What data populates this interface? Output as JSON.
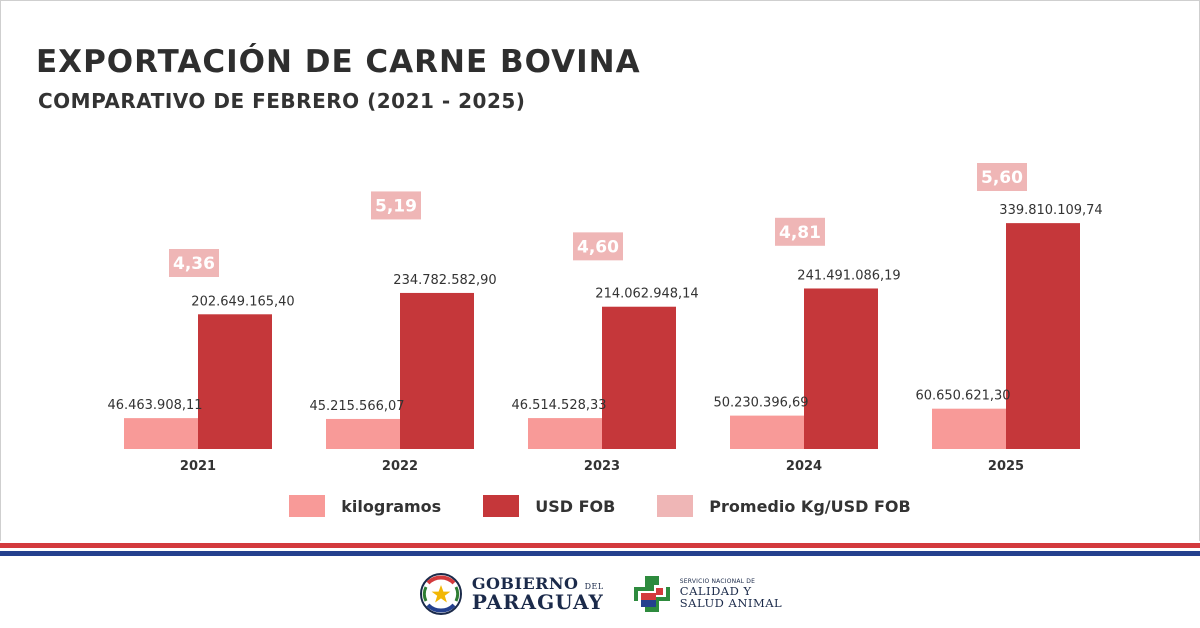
{
  "header": {
    "title": "EXPORTACIÓN DE CARNE BOVINA",
    "subtitle": "COMPARATIVO DE FEBRERO (2021 - 2025)"
  },
  "chart_data": {
    "type": "bar",
    "categories": [
      "2021",
      "2022",
      "2023",
      "2024",
      "2025"
    ],
    "series": [
      {
        "name": "kilogramos",
        "values": [
          46463908.11,
          45215566.07,
          46514528.33,
          50230396.69,
          60650621.3
        ],
        "labels": [
          "46.463.908,11",
          "45.215.566,07",
          "46.514.528,33",
          "50.230.396,69",
          "60.650.621,30"
        ]
      },
      {
        "name": "USD FOB",
        "values": [
          202649165.4,
          234782582.9,
          214062948.14,
          241491086.19,
          339810109.74
        ],
        "labels": [
          "202.649.165,40",
          "234.782.582,90",
          "214.062.948,14",
          "241.491.086,19",
          "339.810.109,74"
        ]
      },
      {
        "name": "Promedio Kg/USD FOB",
        "values": [
          4.36,
          5.19,
          4.6,
          4.81,
          5.6
        ],
        "labels": [
          "4,36",
          "5,19",
          "4,60",
          "4,81",
          "5,60"
        ]
      }
    ],
    "ylim": [
      0,
      340000000
    ],
    "grid": false,
    "legend_position": "bottom",
    "colors": {
      "kilogramos": "#f89a98",
      "usd": "#c5373a",
      "promedio": "#efb6b6",
      "promedio_text": "#ffffff"
    }
  },
  "legend": {
    "items": [
      {
        "label": "kilogramos",
        "color": "#f89a98"
      },
      {
        "label": "USD FOB",
        "color": "#c5373a"
      },
      {
        "label": "Promedio Kg/USD FOB",
        "color": "#efb6b6"
      }
    ]
  },
  "footer": {
    "stripe_colors": [
      "#d33a3d",
      "#ffffff",
      "#24408e"
    ],
    "gobierno_line1": "GOBIERNO",
    "gobierno_del": "DEL",
    "gobierno_line2": "PARAGUAY",
    "senacsa_line1": "SERVICIO NACIONAL DE",
    "senacsa_line2": "CALIDAD Y",
    "senacsa_line3": "SALUD ANIMAL"
  }
}
